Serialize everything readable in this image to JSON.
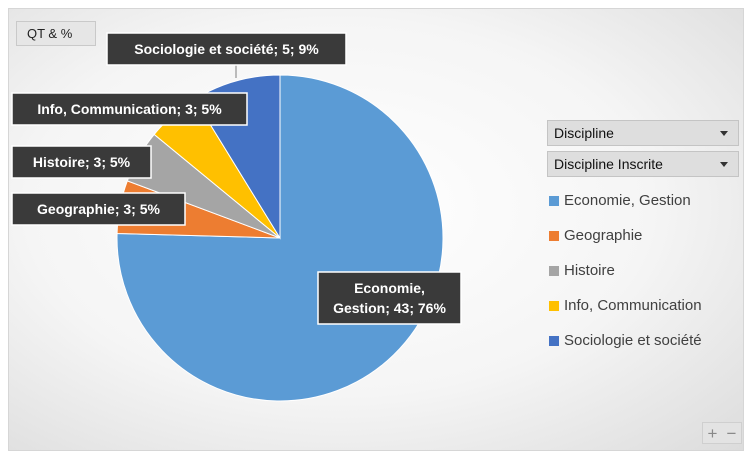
{
  "field_button": {
    "label": "QT & %"
  },
  "filters": [
    {
      "label": "Discipline"
    },
    {
      "label": "Discipline Inscrite"
    }
  ],
  "zoom": {
    "plus": "+",
    "minus": "−"
  },
  "chart_data": {
    "type": "pie",
    "title": "",
    "slices": [
      {
        "name": "Economie, Gestion",
        "value": 43,
        "percent": 76,
        "color": "#5B9BD5",
        "label_lines": [
          "Economie,",
          "Gestion; 43; 76%"
        ]
      },
      {
        "name": "Geographie",
        "value": 3,
        "percent": 5,
        "color": "#ED7D31",
        "label_lines": [
          "Geographie; 3; 5%"
        ]
      },
      {
        "name": "Histoire",
        "value": 3,
        "percent": 5,
        "color": "#A5A5A5",
        "label_lines": [
          "Histoire; 3; 5%"
        ]
      },
      {
        "name": "Info, Communication",
        "value": 3,
        "percent": 5,
        "color": "#FFC000",
        "label_lines": [
          "Info, Communication; 3; 5%"
        ]
      },
      {
        "name": "Sociologie et société",
        "value": 5,
        "percent": 9,
        "color": "#4472C4",
        "label_lines": [
          "Sociologie et société; 5; 9%"
        ]
      }
    ],
    "legend_position": "right"
  }
}
